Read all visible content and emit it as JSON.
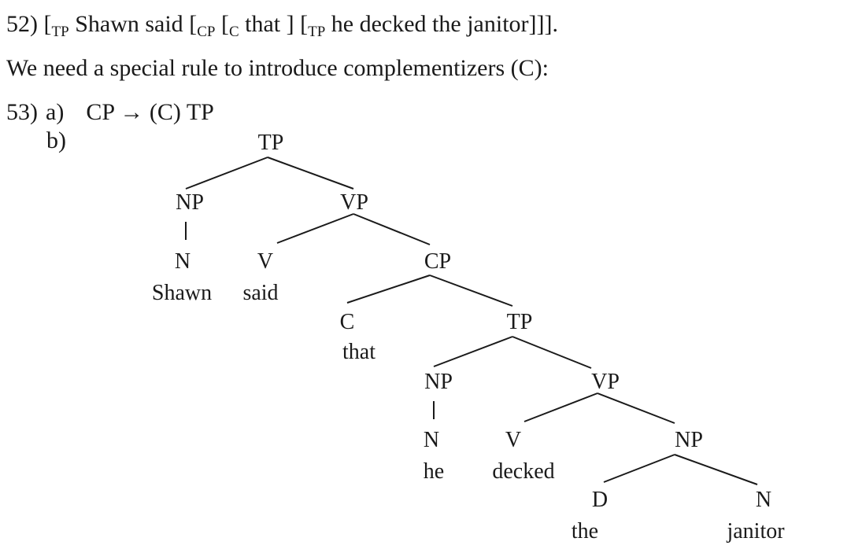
{
  "ex52": {
    "num": "52)",
    "o1": "[",
    "l1": "TP",
    "t1": " Shawn said ",
    "o2": "[",
    "l2": "CP",
    "t2": " ",
    "o3": "[",
    "l3": "C",
    "t3": " that ] ",
    "o4": "[",
    "l4": "TP",
    "t4": " he decked the janitor]]]."
  },
  "intro": "We need a special rule to introduce complementizers (C):",
  "ex53": {
    "num": "53)",
    "a_label": "a)",
    "a_rule": "CP → (C) TP",
    "b_label": "b)"
  },
  "tree": {
    "tp1": "TP",
    "np1": "NP",
    "vp1": "VP",
    "n1": "N",
    "n1_word": "Shawn",
    "v1": "V",
    "v1_word": "said",
    "cp": "CP",
    "c": "C",
    "c_word": "that",
    "tp2": "TP",
    "np2": "NP",
    "vp2": "VP",
    "n2": "N",
    "n2_word": "he",
    "v2": "V",
    "v2_word": "decked",
    "np3": "NP",
    "d": "D",
    "d_word": "the",
    "n3": "N",
    "n3_word": "janitor"
  }
}
